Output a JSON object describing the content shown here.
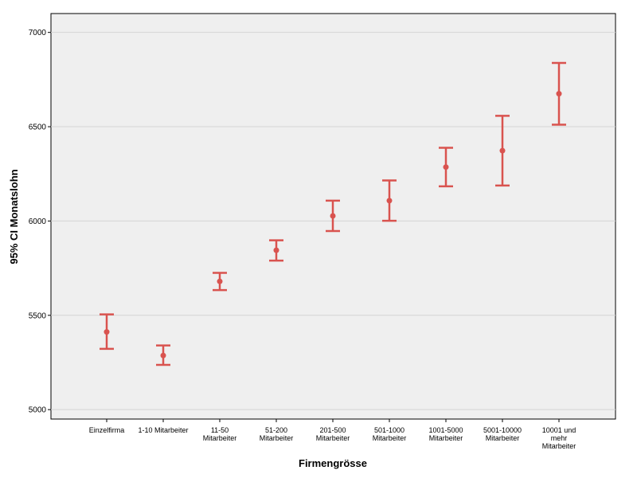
{
  "chart_data": {
    "type": "errorbar",
    "title": "",
    "xlabel": "Firmengrösse",
    "ylabel": "95% CI Monatslohn",
    "ylim": [
      4950,
      7100
    ],
    "yticks": [
      5000,
      5500,
      6000,
      6500,
      7000
    ],
    "grid": true,
    "color": "#d9534f",
    "plot_background": "#efefef",
    "categories": [
      [
        "Einzelfirma"
      ],
      [
        "1-10 Mitarbeiter"
      ],
      [
        "11-50",
        "Mitarbeiter"
      ],
      [
        "51-200",
        "Mitarbeiter"
      ],
      [
        "201-500",
        "Mitarbeiter"
      ],
      [
        "501-1000",
        "Mitarbeiter"
      ],
      [
        "1001-5000",
        "Mitarbeiter"
      ],
      [
        "5001-10000",
        "Mitarbeiter"
      ],
      [
        "10001 und",
        "mehr",
        "Mitarbeiter"
      ]
    ],
    "means": [
      5412,
      5287,
      5680,
      5845,
      6027,
      6108,
      6286,
      6373,
      6675
    ],
    "lower": [
      5322,
      5237,
      5634,
      5790,
      5947,
      6001,
      6184,
      6188,
      6511
    ],
    "upper": [
      5505,
      5340,
      5725,
      5898,
      6108,
      6215,
      6388,
      6558,
      6838
    ]
  }
}
